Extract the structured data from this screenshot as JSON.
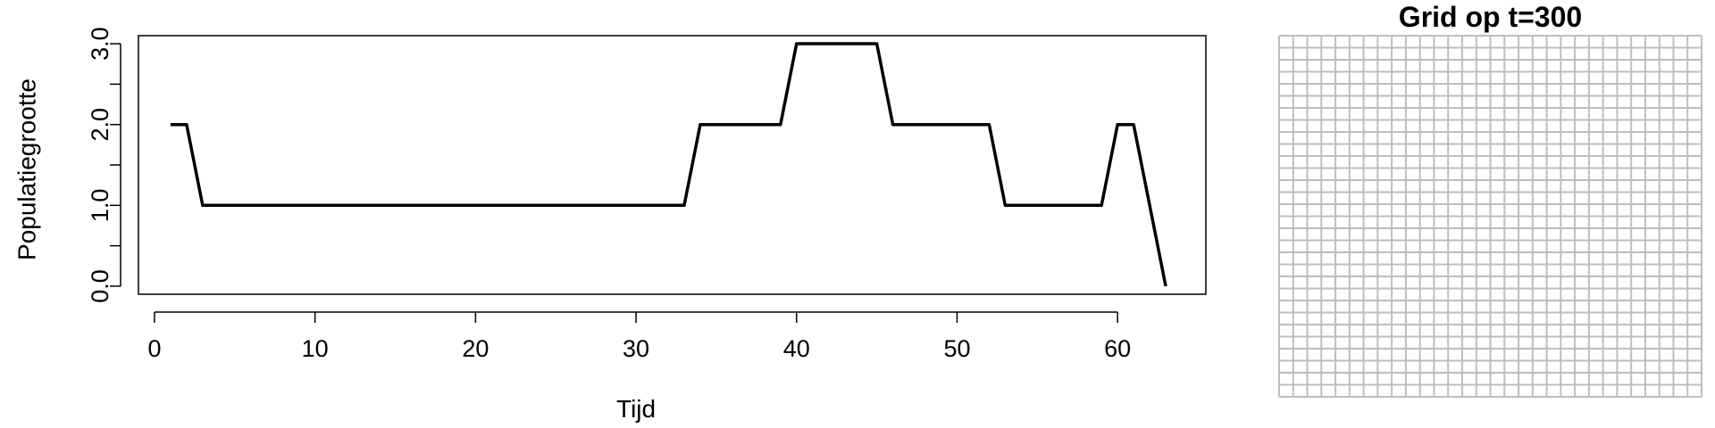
{
  "chart_data": [
    {
      "type": "line",
      "title": "",
      "xlabel": "Tijd",
      "ylabel": "Populatiegrootte",
      "xlim": [
        -1,
        65.5
      ],
      "ylim": [
        -0.1,
        3.1
      ],
      "x_ticks": [
        0,
        10,
        20,
        30,
        40,
        50,
        60
      ],
      "x_tick_labels": [
        "0",
        "10",
        "20",
        "30",
        "40",
        "50",
        "60"
      ],
      "y_ticks": [
        0,
        0.5,
        1,
        1.5,
        2,
        2.5,
        3
      ],
      "y_tick_labels": [
        "0.0",
        "",
        "1.0",
        "",
        "2.0",
        "",
        "3.0"
      ],
      "grid": false,
      "line_color": "#000000",
      "series": [
        {
          "x": [
            1,
            2,
            3,
            4,
            5,
            6,
            7,
            8,
            9,
            10,
            11,
            12,
            13,
            14,
            15,
            16,
            17,
            18,
            19,
            20,
            21,
            22,
            23,
            24,
            25,
            26,
            27,
            28,
            29,
            30,
            31,
            32,
            33,
            34,
            35,
            36,
            37,
            38,
            39,
            40,
            41,
            42,
            43,
            44,
            45,
            46,
            47,
            48,
            49,
            50,
            51,
            52,
            53,
            54,
            55,
            56,
            57,
            58,
            59,
            60,
            61,
            62,
            63
          ],
          "values": [
            2,
            2,
            1,
            1,
            1,
            1,
            1,
            1,
            1,
            1,
            1,
            1,
            1,
            1,
            1,
            1,
            1,
            1,
            1,
            1,
            1,
            1,
            1,
            1,
            1,
            1,
            1,
            1,
            1,
            1,
            1,
            1,
            1,
            2,
            2,
            2,
            2,
            2,
            2,
            3,
            3,
            3,
            3,
            3,
            3,
            2,
            2,
            2,
            2,
            2,
            2,
            2,
            1,
            1,
            1,
            1,
            1,
            1,
            1,
            2,
            2,
            1,
            0
          ]
        }
      ]
    },
    {
      "type": "heatmap",
      "title": "Grid op t=300",
      "rows": 30,
      "cols": 30,
      "cell_color": "#ffffff",
      "grid_line_color": "#bebebe"
    }
  ]
}
